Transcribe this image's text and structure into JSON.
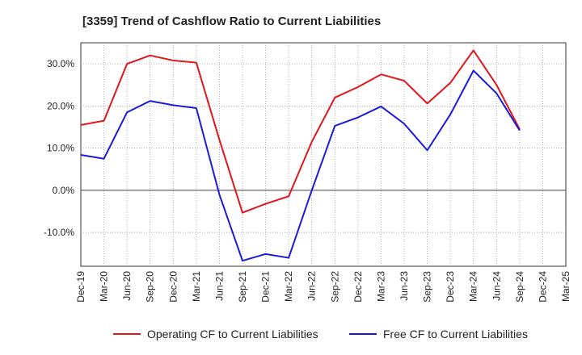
{
  "chart_data": {
    "type": "line",
    "title": "[3359]  Trend of Cashflow Ratio to Current Liabilities",
    "xlabel": "",
    "ylabel": "",
    "categories": [
      "Dec-19",
      "Mar-20",
      "Jun-20",
      "Sep-20",
      "Dec-20",
      "Mar-21",
      "Jun-21",
      "Sep-21",
      "Dec-21",
      "Mar-22",
      "Jun-22",
      "Sep-22",
      "Dec-22",
      "Mar-23",
      "Jun-23",
      "Sep-23",
      "Dec-23",
      "Mar-24",
      "Jun-24",
      "Sep-24",
      "Dec-24",
      "Mar-25"
    ],
    "ylim": [
      -18,
      35
    ],
    "yticks": [
      -10,
      0,
      10,
      20,
      30
    ],
    "ytick_labels": [
      "-10.0%",
      "0.0%",
      "10.0%",
      "20.0%",
      "30.0%"
    ],
    "grid": true,
    "legend_position": "bottom",
    "series": [
      {
        "name": "Operating CF to Current Liabilities",
        "color": "#e0161b",
        "values": [
          15.5,
          16.5,
          30.0,
          32.0,
          30.8,
          30.3,
          12.0,
          -5.3,
          -3.2,
          -1.4,
          11.5,
          22.0,
          24.5,
          27.5,
          26.0,
          20.6,
          25.5,
          33.2,
          25.0,
          14.5,
          null,
          null
        ]
      },
      {
        "name": "Free CF to Current Liabilities",
        "color": "#1a1adb",
        "values": [
          8.4,
          7.5,
          18.5,
          21.2,
          20.2,
          19.5,
          -1.0,
          -16.7,
          -15.1,
          -16.0,
          0.0,
          15.3,
          17.3,
          19.9,
          15.8,
          9.5,
          18.0,
          28.4,
          23.0,
          14.2,
          null,
          null
        ]
      }
    ]
  }
}
